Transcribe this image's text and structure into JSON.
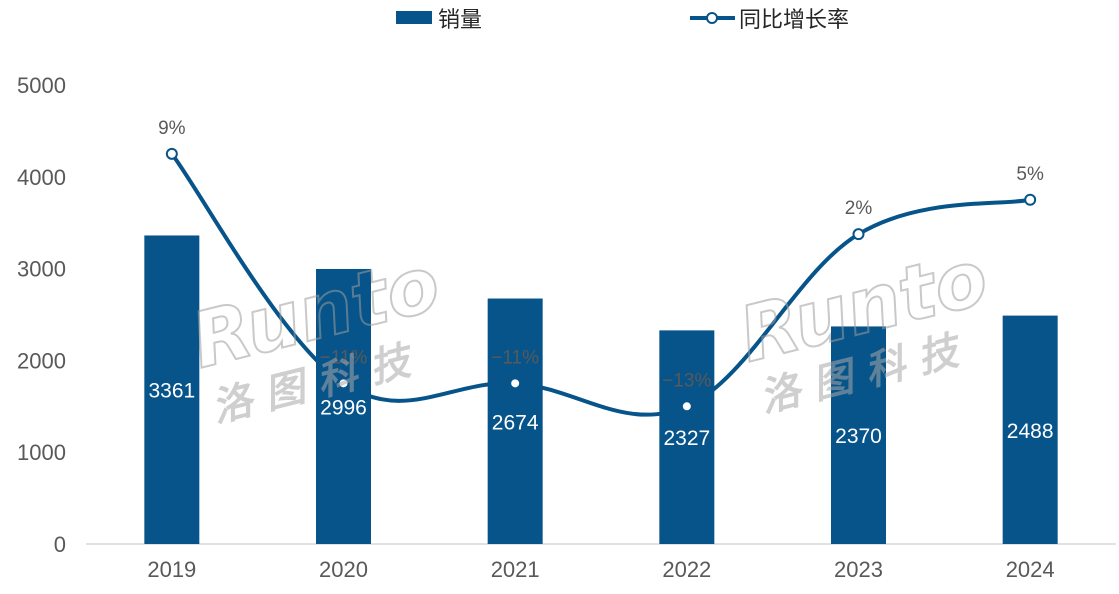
{
  "chart_data": {
    "type": "bar",
    "categories": [
      "2019",
      "2020",
      "2021",
      "2022",
      "2023",
      "2024"
    ],
    "series": [
      {
        "name": "销量",
        "type": "bar",
        "values": [
          3361,
          2996,
          2674,
          2327,
          2370,
          2488
        ],
        "color": "#06548A"
      },
      {
        "name": "同比增长率",
        "type": "line",
        "values": [
          9,
          -11,
          -11,
          -13,
          2,
          5
        ],
        "labels": [
          "9%",
          "−11%",
          "−11%",
          "−13%",
          "2%",
          "5%"
        ],
        "color": "#06548A"
      }
    ],
    "ylim": [
      0,
      5000
    ],
    "yticks": [
      "0",
      "1000",
      "2000",
      "3000",
      "4000",
      "5000"
    ],
    "legend_position": "top",
    "grid": false
  },
  "watermark": {
    "logo_text": "Runto",
    "company_text": "洛图科技",
    "color": "#BFBFBF"
  }
}
